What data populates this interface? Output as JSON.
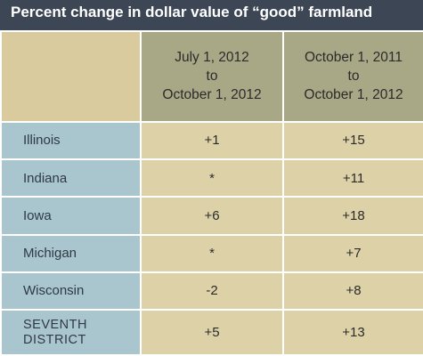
{
  "title": "Percent change in dollar value of “good” farmland",
  "columns": [
    {
      "line1": "July 1, 2012",
      "line2": "to",
      "line3": "October 1, 2012"
    },
    {
      "line1": "October 1, 2011",
      "line2": "to",
      "line3": "October 1, 2012"
    }
  ],
  "rows": [
    {
      "state": "Illinois",
      "col1": "+1",
      "col2": "+15"
    },
    {
      "state": "Indiana",
      "col1": "*",
      "col2": "+11"
    },
    {
      "state": "Iowa",
      "col1": "+6",
      "col2": "+18"
    },
    {
      "state": "Michigan",
      "col1": "*",
      "col2": "+7"
    },
    {
      "state": "Wisconsin",
      "col1": "-2",
      "col2": "+8"
    },
    {
      "state_line1": "SEVENTH",
      "state_line2": "DISTRICT",
      "col1": "+5",
      "col2": "+13"
    }
  ],
  "colors": {
    "title_bg": "#3d4654",
    "header_blank": "#d9cb9e",
    "header_col": "#a8a887",
    "state_bg": "#a9c5ce",
    "value_bg": "#ddd1a8"
  }
}
